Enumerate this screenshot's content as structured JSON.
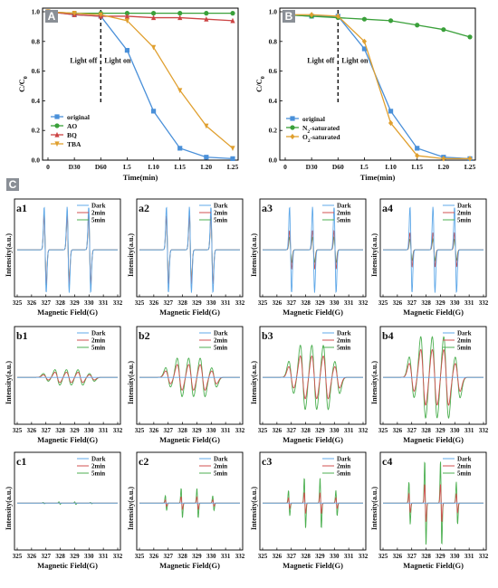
{
  "colors": {
    "blue": "#4a90d9",
    "green": "#3aa03a",
    "red": "#cc4444",
    "orange": "#e0a030",
    "esr_blue": "#5fa8e8",
    "esr_red": "#d05050",
    "esr_green": "#4caf50",
    "badge": "#8a8f96"
  },
  "panels": {
    "A": {
      "badge": "A",
      "light_off": "Light off",
      "light_on": "Light on"
    },
    "B": {
      "badge": "B",
      "light_off": "Light off",
      "light_on": "Light on"
    },
    "C": {
      "badge": "C"
    }
  },
  "chart_data": [
    {
      "id": "A",
      "type": "line",
      "x": [
        "0",
        "D30",
        "D60",
        "L5",
        "L10",
        "L15",
        "L20",
        "L25"
      ],
      "xlabel": "Time(min)",
      "ylabel": "C/C0",
      "ylim": [
        0,
        1.0
      ],
      "yticks": [
        "0.0",
        "0.2",
        "0.4",
        "0.6",
        "0.8",
        "1.0"
      ],
      "legend": "bottom-left",
      "series": [
        {
          "name": "original",
          "color": "#4a90d9",
          "marker": "square",
          "values": [
            1.0,
            0.98,
            0.97,
            0.74,
            0.33,
            0.08,
            0.02,
            0.01
          ]
        },
        {
          "name": "AO",
          "color": "#3aa03a",
          "marker": "circle",
          "values": [
            1.0,
            0.99,
            0.99,
            0.99,
            0.99,
            0.99,
            0.99,
            0.99
          ]
        },
        {
          "name": "BQ",
          "color": "#cc4444",
          "marker": "triangle",
          "values": [
            1.0,
            0.98,
            0.97,
            0.97,
            0.96,
            0.96,
            0.95,
            0.94
          ]
        },
        {
          "name": "TBA",
          "color": "#e0a030",
          "marker": "triangle-down",
          "values": [
            1.0,
            0.99,
            0.98,
            0.94,
            0.76,
            0.47,
            0.23,
            0.08
          ]
        }
      ]
    },
    {
      "id": "B",
      "type": "line",
      "x": [
        "0",
        "D30",
        "D60",
        "L5",
        "L10",
        "L15",
        "L20",
        "L25"
      ],
      "xlabel": "Time(min)",
      "ylabel": "C/C0",
      "ylim": [
        0,
        1.0
      ],
      "yticks": [
        "0.0",
        "0.2",
        "0.4",
        "0.6",
        "0.8",
        "1.0"
      ],
      "legend": "bottom-left",
      "series": [
        {
          "name": "original",
          "color": "#4a90d9",
          "marker": "square",
          "values": [
            0.98,
            0.97,
            0.97,
            0.75,
            0.33,
            0.08,
            0.02,
            0.01
          ]
        },
        {
          "name": "N2-saturated",
          "color": "#3aa03a",
          "marker": "circle",
          "values": [
            0.98,
            0.97,
            0.96,
            0.95,
            0.94,
            0.91,
            0.88,
            0.83
          ]
        },
        {
          "name": "O2-saturated",
          "color": "#e0a030",
          "marker": "diamond",
          "values": [
            0.98,
            0.98,
            0.97,
            0.8,
            0.25,
            0.03,
            0.01,
            0.01
          ]
        }
      ]
    },
    {
      "id": "C",
      "type": "line",
      "xlabel": "Magnetic Field(G)",
      "ylabel": "Intensity(a.u.)",
      "xticks": [
        "325",
        "326",
        "327",
        "328",
        "329",
        "330",
        "331",
        "332"
      ],
      "xlim": [
        325,
        332
      ],
      "legend": "top-right",
      "legend_entries": [
        "Dark",
        "2min",
        "5min"
      ],
      "panels": [
        {
          "label": "a1",
          "kind": "a",
          "amps": [
            1.0,
            0.8,
            0.85
          ]
        },
        {
          "label": "a2",
          "kind": "a",
          "amps": [
            1.0,
            0.8,
            0.8
          ]
        },
        {
          "label": "a3",
          "kind": "a",
          "amps": [
            1.0,
            0.45,
            0.3
          ]
        },
        {
          "label": "a4",
          "kind": "a",
          "amps": [
            1.0,
            0.4,
            0.25
          ]
        },
        {
          "label": "b1",
          "kind": "b",
          "amps": [
            0.0,
            0.12,
            0.18
          ]
        },
        {
          "label": "b2",
          "kind": "b",
          "amps": [
            0.0,
            0.3,
            0.45
          ]
        },
        {
          "label": "b3",
          "kind": "b",
          "amps": [
            0.0,
            0.5,
            0.75
          ]
        },
        {
          "label": "b4",
          "kind": "b",
          "amps": [
            0.0,
            0.65,
            0.95
          ]
        },
        {
          "label": "c1",
          "kind": "c",
          "amps": [
            0.0,
            0.0,
            0.03
          ]
        },
        {
          "label": "c2",
          "kind": "c",
          "amps": [
            0.0,
            0.15,
            0.35
          ]
        },
        {
          "label": "c3",
          "kind": "c",
          "amps": [
            0.0,
            0.25,
            0.6
          ]
        },
        {
          "label": "c4",
          "kind": "c",
          "amps": [
            0.0,
            0.45,
            1.0
          ]
        }
      ]
    }
  ]
}
